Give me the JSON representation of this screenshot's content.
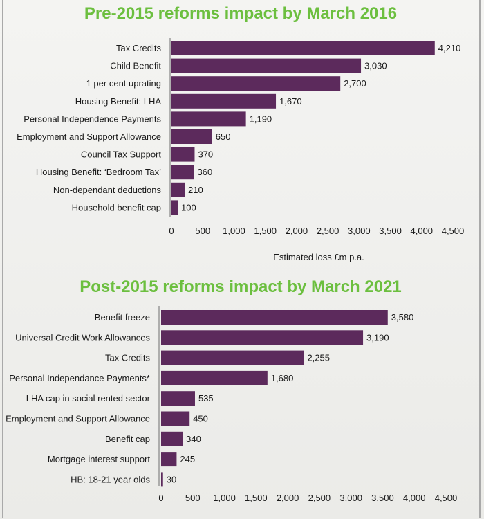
{
  "chart_data": [
    {
      "type": "bar",
      "orientation": "horizontal",
      "title": "Pre-2015 reforms impact by March 2016",
      "xlabel": "Estimated loss £m p.a.",
      "xlim": [
        0,
        4500
      ],
      "ticks": [
        0,
        500,
        1000,
        1500,
        2000,
        2500,
        3000,
        3500,
        4000,
        4500
      ],
      "tick_labels": [
        "0",
        "500",
        "1,000",
        "1,500",
        "2,000",
        "2,500",
        "3,000",
        "3,500",
        "4,000",
        "4,500"
      ],
      "categories": [
        "Tax Credits",
        "Child Benefit",
        "1 per cent uprating",
        "Housing Benefit: LHA",
        "Personal Independence Payments",
        "Employment and Support Allowance",
        "Council Tax Support",
        "Housing Benefit: ‘Bedroom Tax’",
        "Non-dependant deductions",
        "Household benefit cap"
      ],
      "values": [
        4210,
        3030,
        2700,
        1670,
        1190,
        650,
        370,
        360,
        210,
        100
      ],
      "value_labels": [
        "4,210",
        "3,030",
        "2,700",
        "1,670",
        "1,190",
        "650",
        "370",
        "360",
        "210",
        "100"
      ],
      "bar_color": "#5c2a5c",
      "grid": false
    },
    {
      "type": "bar",
      "orientation": "horizontal",
      "title": "Post-2015 reforms impact by March 2021",
      "xlabel": "",
      "xlim": [
        0,
        4500
      ],
      "ticks": [
        0,
        500,
        1000,
        1500,
        2000,
        2500,
        3000,
        3500,
        4000,
        4500
      ],
      "tick_labels": [
        "0",
        "500",
        "1,000",
        "1,500",
        "2,000",
        "2,500",
        "3,000",
        "3,500",
        "4,000",
        "4,500"
      ],
      "categories": [
        "Benefit freeze",
        "Universal Credit Work Allowances",
        "Tax Credits",
        "Personal Independance Payments*",
        "LHA cap in social rented sector",
        "Employment and Support Allowance",
        "Benefit cap",
        "Mortgage interest support",
        "HB: 18-21 year olds"
      ],
      "values": [
        3580,
        3190,
        2255,
        1680,
        535,
        450,
        340,
        245,
        30
      ],
      "value_labels": [
        "3,580",
        "3,190",
        "2,255",
        "1,680",
        "535",
        "450",
        "340",
        "245",
        "30"
      ],
      "bar_color": "#5c2a5c",
      "grid": false
    }
  ],
  "colors": {
    "title": "#6cbf3f",
    "bar": "#5c2a5c",
    "axis": "#6e6e6e"
  }
}
